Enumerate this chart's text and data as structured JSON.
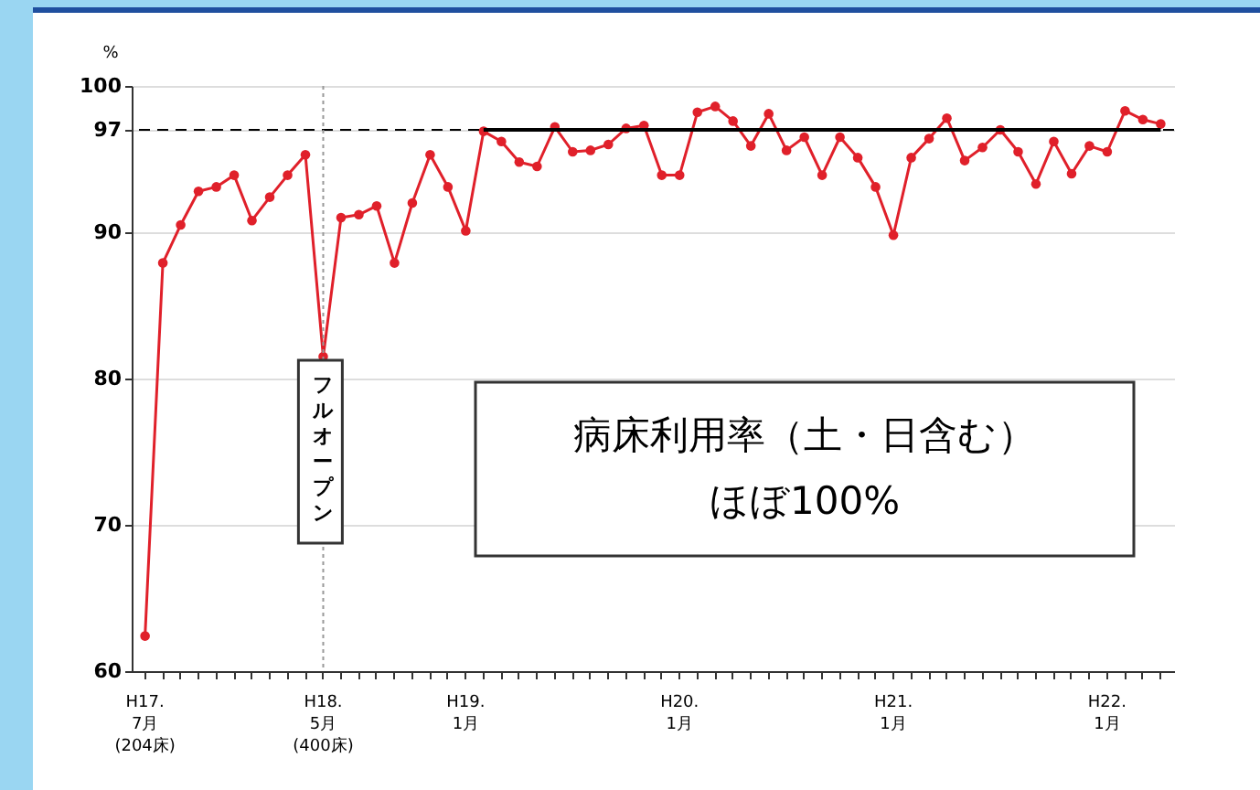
{
  "chart_data": {
    "type": "line",
    "ylabel": "%",
    "categories": [
      "H17.\n7月\n(204床)",
      null,
      null,
      null,
      null,
      null,
      null,
      null,
      null,
      null,
      "H18.\n5月\n(400床)",
      null,
      null,
      null,
      null,
      null,
      null,
      null,
      "H19.\n1月",
      null,
      null,
      null,
      null,
      null,
      null,
      null,
      null,
      null,
      null,
      null,
      "H20.\n1月",
      null,
      null,
      null,
      null,
      null,
      null,
      null,
      null,
      null,
      null,
      null,
      "H21.\n1月",
      null,
      null,
      null,
      null,
      null,
      null,
      null,
      null,
      null,
      null,
      null,
      "H22.\n1月",
      null,
      null,
      null
    ],
    "series": [
      {
        "color": "#e0202a",
        "values": [
          62.4,
          87.9,
          90.5,
          92.8,
          93.1,
          93.9,
          90.8,
          92.4,
          93.9,
          95.3,
          81.5,
          91.0,
          91.2,
          91.8,
          87.9,
          92.0,
          95.3,
          93.1,
          90.1,
          96.9,
          96.2,
          94.8,
          94.5,
          97.2,
          95.5,
          95.6,
          96.0,
          97.1,
          97.3,
          93.9,
          93.9,
          98.2,
          98.6,
          97.6,
          95.9,
          98.1,
          95.6,
          96.5,
          93.9,
          96.5,
          95.1,
          93.1,
          89.8,
          95.1,
          96.4,
          97.8,
          94.9,
          95.8,
          97.0,
          95.5,
          93.3,
          96.2,
          94.0,
          95.9,
          95.5,
          98.3,
          97.7,
          97.4
        ]
      },
      {
        "color": "#000000",
        "marker": "none",
        "values": [
          null,
          null,
          null,
          null,
          null,
          null,
          null,
          null,
          null,
          null,
          null,
          null,
          null,
          null,
          null,
          null,
          null,
          null,
          null,
          97,
          97,
          97,
          97,
          97,
          97,
          97,
          97,
          97,
          97,
          97,
          97,
          97,
          97,
          97,
          97,
          97,
          97,
          97,
          97,
          97,
          97,
          97,
          97,
          97,
          97,
          97,
          97,
          97,
          97,
          97,
          97,
          97,
          97,
          97,
          97,
          97,
          97,
          97
        ]
      }
    ],
    "ylim": [
      60,
      100
    ],
    "yticks": [
      60,
      70,
      80,
      90,
      97,
      100
    ],
    "grid": "y",
    "marker": "circle",
    "ref_lines": [
      {
        "axis": "y",
        "value": 97,
        "color": "#000000",
        "line_style": "dashed"
      },
      {
        "axis": "x",
        "value": "H18.\n5月\n(400床)",
        "color": "#999999",
        "line_style": "dotted"
      }
    ],
    "annotations": [
      {
        "text": "フルオープン",
        "x": "H18.\n5月\n(400床)",
        "y": 75
      },
      "病床利用率（土・日含む）",
      "ほぼ100%"
    ]
  }
}
